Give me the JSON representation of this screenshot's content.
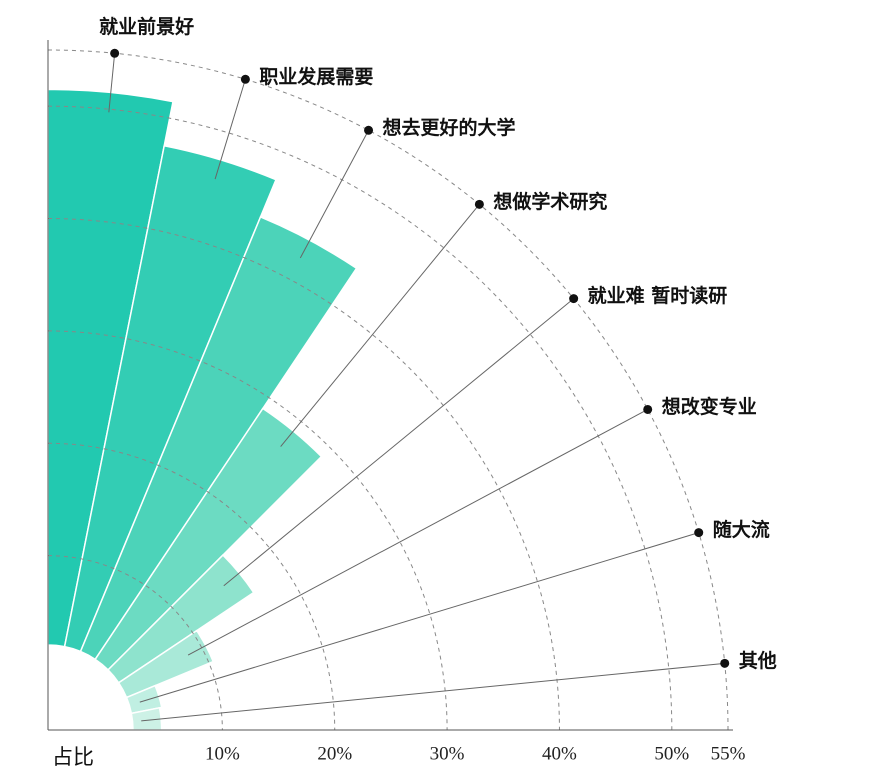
{
  "chart_data": {
    "type": "polar-bar",
    "categories": [
      "就业前景好",
      "职业发展需要",
      "想去更好的大学",
      "想做学术研究",
      "就业难 暂时读研",
      "想改变专业",
      "随大流",
      "其他"
    ],
    "values": [
      51.5,
      47.5,
      43.9,
      28.9,
      16.5,
      10.4,
      4.8,
      4.6
    ],
    "colors": [
      "#22c9b0",
      "#33cdb4",
      "#4cd3b9",
      "#6cdbc2",
      "#8ee3cd",
      "#a9e9d8",
      "#c0efe2",
      "#cdf1e6"
    ],
    "rlabel": "占比",
    "rlim": [
      0,
      55
    ],
    "rticks": [
      {
        "value": 10,
        "label": "10%"
      },
      {
        "value": 20,
        "label": "20%"
      },
      {
        "value": 30,
        "label": "30%"
      },
      {
        "value": 40,
        "label": "40%"
      },
      {
        "value": 50,
        "label": "50%"
      },
      {
        "value": 55,
        "label": "55%"
      }
    ],
    "grid": true
  }
}
